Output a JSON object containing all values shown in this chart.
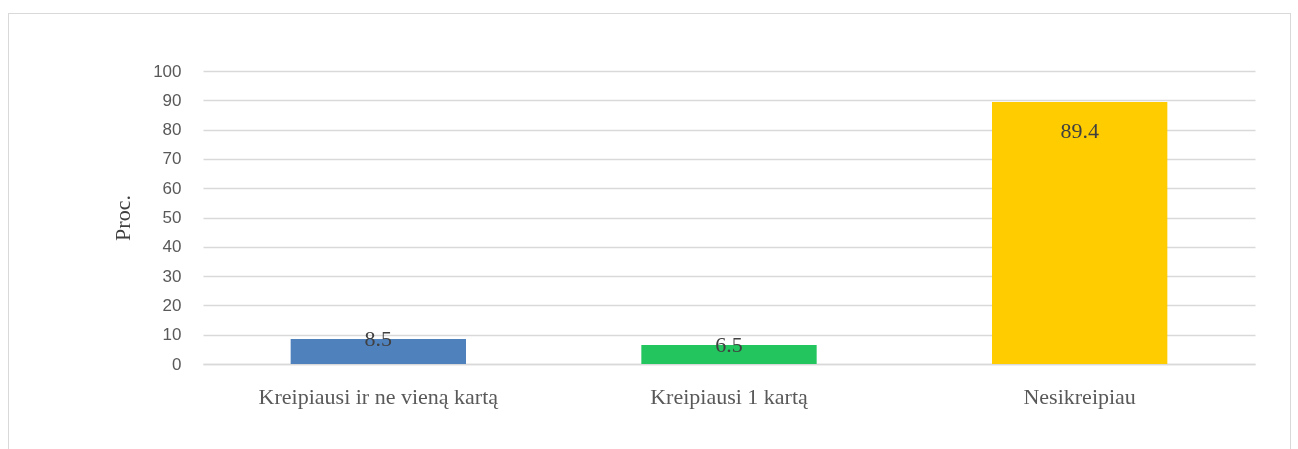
{
  "chart_data": {
    "type": "bar",
    "ylabel": "Proc.",
    "categories": [
      "Kreipiausi ir ne vieną kartą",
      "Kreipiausi 1 kartą",
      "Nesikreipiau"
    ],
    "values": [
      8.5,
      6.5,
      89.4
    ],
    "colors": [
      "#4f81bd",
      "#22c55e",
      "#ffcc00"
    ],
    "ylim": [
      0,
      100
    ],
    "yticks": [
      0,
      10,
      20,
      30,
      40,
      50,
      60,
      70,
      80,
      90,
      100
    ],
    "grid": "y",
    "data_labels": true
  }
}
